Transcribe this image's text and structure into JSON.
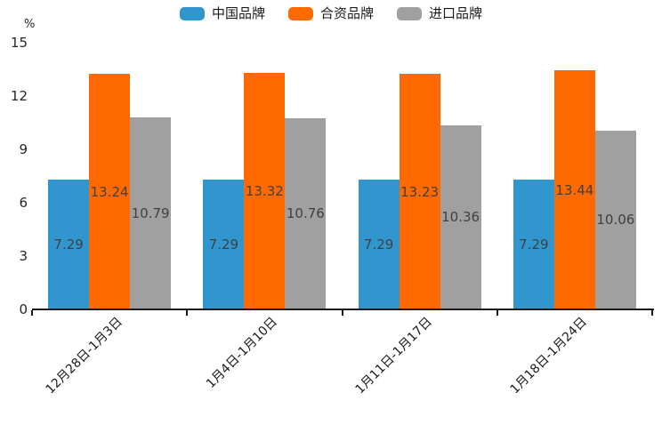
{
  "chart_data": {
    "type": "bar",
    "title": "",
    "unit_label": "%",
    "categories": [
      "12月28日-1月3日",
      "1月4日-1月10日",
      "1月11日-1月17日",
      "1月18日-1月24日"
    ],
    "series": [
      {
        "name": "中国品牌",
        "color": "#3296CE",
        "values": [
          7.29,
          7.29,
          7.29,
          7.29
        ]
      },
      {
        "name": "合资品牌",
        "color": "#FF6A00",
        "values": [
          13.24,
          13.32,
          13.23,
          13.44
        ]
      },
      {
        "name": "进口品牌",
        "color": "#A0A0A0",
        "values": [
          10.79,
          10.76,
          10.36,
          10.06
        ]
      }
    ],
    "y_ticks": [
      0,
      3,
      6,
      9,
      12,
      15
    ],
    "ylim": [
      0,
      15
    ],
    "grid": false,
    "legend_position": "top",
    "value_labels": "inside-center",
    "value_label_color": "#404040",
    "axis_color": "#1a1a1a"
  }
}
